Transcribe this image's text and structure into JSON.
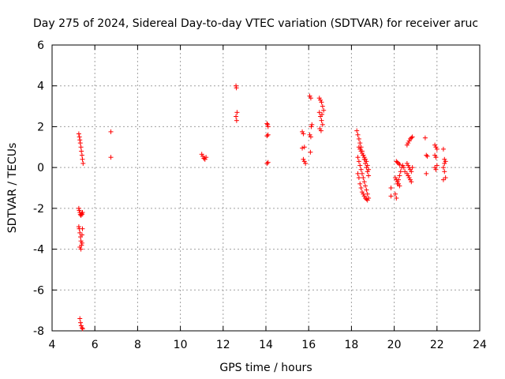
{
  "chart_data": {
    "type": "scatter",
    "title": "Day 275 of 2024, Sidereal Day-to-day VTEC variation (SDTVAR) for receiver aruc",
    "xlabel": "GPS time / hours",
    "ylabel": "SDTVAR / TECUs",
    "xlim": [
      4,
      24
    ],
    "ylim": [
      -8,
      6
    ],
    "xticks": [
      4,
      6,
      8,
      10,
      12,
      14,
      16,
      18,
      20,
      22,
      24
    ],
    "yticks": [
      -8,
      -6,
      -4,
      -2,
      0,
      2,
      4,
      6
    ],
    "grid": true,
    "marker": "+",
    "color": "#ff0000",
    "series": [
      {
        "name": "SDTVAR",
        "x": [
          5.25,
          5.28,
          5.3,
          5.32,
          5.35,
          5.37,
          5.4,
          5.42,
          5.45,
          5.25,
          5.27,
          5.3,
          5.32,
          5.35,
          5.38,
          5.4,
          5.42,
          5.25,
          5.27,
          5.3,
          5.33,
          5.35,
          5.38,
          5.4,
          5.42,
          5.3,
          5.35,
          5.4,
          5.3,
          5.33,
          5.36,
          5.4,
          5.43,
          6.75,
          6.75,
          11.0,
          11.05,
          11.1,
          11.15,
          11.2,
          12.6,
          12.62,
          12.65,
          12.6,
          12.63,
          14.05,
          14.08,
          14.1,
          14.05,
          14.1,
          14.05,
          14.1,
          15.7,
          15.75,
          15.8,
          15.7,
          15.75,
          15.8,
          15.85,
          16.05,
          16.1,
          16.15,
          16.05,
          16.1,
          16.08,
          16.12,
          16.5,
          16.55,
          16.6,
          16.65,
          16.7,
          16.5,
          16.55,
          16.6,
          16.65,
          16.52,
          16.58,
          16.62,
          18.25,
          18.3,
          18.35,
          18.4,
          18.45,
          18.5,
          18.55,
          18.6,
          18.65,
          18.7,
          18.75,
          18.8,
          18.3,
          18.35,
          18.4,
          18.45,
          18.5,
          18.55,
          18.6,
          18.65,
          18.7,
          18.75,
          18.8,
          18.3,
          18.35,
          18.4,
          18.45,
          18.5,
          18.55,
          18.6,
          18.65,
          18.7,
          18.75,
          18.35,
          18.4,
          18.45,
          18.5,
          18.55,
          18.6,
          18.65,
          18.7,
          18.75,
          18.8,
          19.85,
          19.85,
          20.05,
          20.1,
          20.15,
          20.2,
          20.25,
          20.3,
          20.35,
          20.4,
          20.45,
          20.5,
          20.1,
          20.15,
          20.2,
          20.25,
          20.05,
          20.1,
          20.15,
          20.2,
          20.25,
          20.6,
          20.65,
          20.7,
          20.75,
          20.8,
          20.85,
          20.6,
          20.65,
          20.7,
          20.75,
          20.8,
          20.6,
          20.65,
          20.7,
          20.75,
          20.8,
          20.85,
          21.45,
          21.5,
          21.55,
          21.5,
          21.9,
          21.95,
          22.0,
          21.9,
          21.95,
          22.0,
          21.9,
          21.95,
          22.3,
          22.35,
          22.4,
          22.3,
          22.35,
          22.4,
          22.3,
          22.35
        ],
        "y": [
          1.65,
          1.5,
          1.35,
          1.2,
          1.0,
          0.8,
          0.6,
          0.4,
          0.2,
          -2.0,
          -2.1,
          -2.2,
          -2.3,
          -2.35,
          -2.25,
          -2.3,
          -2.2,
          -2.9,
          -3.0,
          -3.2,
          -3.4,
          -3.6,
          -3.8,
          -3.3,
          -3.0,
          -3.9,
          -4.0,
          -3.7,
          -7.4,
          -7.6,
          -7.75,
          -7.85,
          -7.9,
          1.75,
          0.5,
          0.65,
          0.55,
          0.45,
          0.4,
          0.5,
          4.0,
          3.9,
          2.7,
          2.5,
          2.3,
          2.15,
          2.1,
          1.6,
          1.55,
          0.25,
          0.2,
          2.0,
          1.75,
          1.65,
          1.0,
          0.95,
          0.4,
          0.3,
          0.2,
          3.5,
          3.4,
          2.1,
          1.6,
          1.5,
          0.75,
          2.0,
          3.4,
          3.3,
          3.2,
          3.0,
          2.8,
          2.7,
          2.5,
          2.3,
          2.1,
          1.9,
          1.8,
          2.6,
          1.8,
          1.6,
          1.4,
          1.2,
          1.0,
          0.8,
          0.6,
          0.4,
          0.2,
          0.0,
          -0.2,
          -0.4,
          0.5,
          0.3,
          0.1,
          -0.1,
          -0.3,
          -0.5,
          -0.7,
          -0.9,
          -1.1,
          -1.3,
          -1.5,
          -0.3,
          -0.5,
          -0.8,
          -1.0,
          -1.2,
          -1.3,
          -1.4,
          -1.5,
          -1.55,
          -1.6,
          1.0,
          0.9,
          0.8,
          0.7,
          0.6,
          0.5,
          0.4,
          0.3,
          0.1,
          -0.1,
          -1.0,
          -1.4,
          -1.3,
          -1.5,
          -0.8,
          -0.6,
          -0.4,
          -0.2,
          0.0,
          0.1,
          0.0,
          -0.2,
          0.3,
          0.25,
          0.2,
          0.15,
          -0.5,
          -0.6,
          -0.7,
          -0.8,
          -0.9,
          1.1,
          1.2,
          1.3,
          1.4,
          1.45,
          1.5,
          0.2,
          0.1,
          0.0,
          -0.1,
          -0.2,
          -0.3,
          -0.4,
          -0.5,
          -0.6,
          -0.7,
          0.0,
          1.45,
          0.6,
          0.55,
          -0.3,
          1.1,
          1.0,
          0.9,
          0.6,
          0.5,
          0.1,
          0.0,
          -0.1,
          0.9,
          0.4,
          0.3,
          0.0,
          -0.2,
          -0.5,
          -0.6,
          0.2
        ]
      }
    ]
  }
}
